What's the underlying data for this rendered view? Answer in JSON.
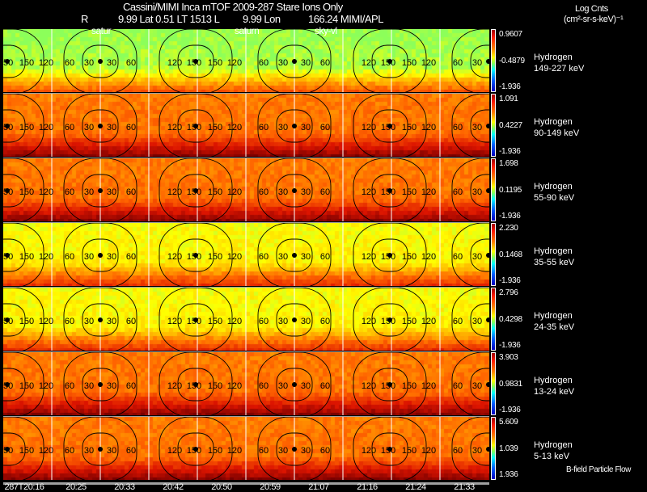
{
  "header": {
    "title": "Cassini/MIMI Inca mTOF  2009-287   Stare    Ions Only",
    "r_label": "R",
    "lat_info": "9.99 Lat 0.51 LT 1513 L",
    "lon_info": "9.99 Lon",
    "mimi": "166.24  MIMI/APL",
    "overlay_1": "satur",
    "overlay_2": "saturn",
    "overlay_3": "sky-vl",
    "units_line1": "Log Cnts",
    "units_line2": "(cm²-sr-s-keV)⁻¹"
  },
  "rows": [
    {
      "species": "Hydrogen",
      "energy": "149-227 keV",
      "max": "0.9607",
      "mid": "-0.4879",
      "min": "-1.936",
      "tone": 0
    },
    {
      "species": "Hydrogen",
      "energy": "90-149 keV",
      "max": "1.091",
      "mid": "0.4227",
      "min": "-1.936",
      "tone": 2
    },
    {
      "species": "Hydrogen",
      "energy": "55-90 keV",
      "max": "1.698",
      "mid": "0.1195",
      "min": "-1.936",
      "tone": 2
    },
    {
      "species": "Hydrogen",
      "energy": "35-55 keV",
      "max": "2.230",
      "mid": "0.1468",
      "min": "-1.936",
      "tone": 1
    },
    {
      "species": "Hydrogen",
      "energy": "24-35 keV",
      "max": "2.796",
      "mid": "0.4298",
      "min": "-1.936",
      "tone": 1
    },
    {
      "species": "Hydrogen",
      "energy": "13-24 keV",
      "max": "3.903",
      "mid": "0.9831",
      "min": "-1.936",
      "tone": 2
    },
    {
      "species": "Hydrogen",
      "energy": "5-13 keV",
      "max": "5.609",
      "mid": "1.039",
      "min": "1.936",
      "tone": 2
    }
  ],
  "contour_labels": {
    "c30": "30",
    "c60": "60",
    "c90": "90",
    "c120": "120",
    "c150": "150"
  },
  "footer_note": "B-field Particle Flow",
  "time_ticks": [
    "287T20:16",
    "20:25",
    "20:33",
    "20:42",
    "20:50",
    "20:59",
    "21:07",
    "21:16",
    "21:24",
    "21:33"
  ]
}
